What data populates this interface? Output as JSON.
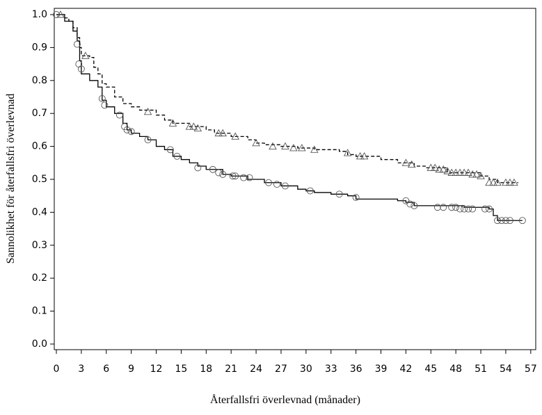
{
  "chart_data": {
    "type": "line",
    "step": true,
    "xlabel": "Återfallsfri överlevnad (månader)",
    "ylabel": "Sannolikhet för återfallsfri överlevnad",
    "xlim": [
      -0.25,
      57.6
    ],
    "ylim": [
      -0.017,
      1.019
    ],
    "xticks": [
      0,
      3,
      6,
      9,
      12,
      15,
      18,
      21,
      24,
      27,
      30,
      33,
      36,
      39,
      42,
      45,
      48,
      51,
      54,
      57
    ],
    "yticks": [
      {
        "value": 0,
        "label": "0.0"
      },
      0.1,
      0.2,
      0.3,
      0.4,
      0.5,
      0.6,
      0.7,
      0.8,
      0.9,
      {
        "value": 1,
        "label": "1.0"
      }
    ],
    "series": [
      {
        "color": "#000000",
        "dash": false,
        "marker": "circle",
        "x": [
          0,
          1,
          2,
          2.5,
          2.8,
          3,
          4,
          5,
          5.5,
          6,
          7,
          8,
          8.5,
          9,
          10,
          11,
          12,
          13,
          14,
          15,
          16,
          17,
          18,
          20,
          21,
          23,
          25,
          27,
          29,
          30,
          31,
          33,
          35,
          36,
          41,
          42,
          43,
          49,
          52,
          52.5,
          53,
          56
        ],
        "values": [
          1.0,
          0.98,
          0.95,
          0.92,
          0.86,
          0.82,
          0.8,
          0.78,
          0.74,
          0.72,
          0.7,
          0.67,
          0.65,
          0.64,
          0.63,
          0.62,
          0.6,
          0.59,
          0.57,
          0.56,
          0.55,
          0.54,
          0.53,
          0.515,
          0.51,
          0.5,
          0.49,
          0.48,
          0.47,
          0.465,
          0.46,
          0.455,
          0.45,
          0.44,
          0.435,
          0.43,
          0.42,
          0.415,
          0.41,
          0.39,
          0.375,
          0.375
        ],
        "censor_x": [
          0,
          2.5,
          2.7,
          3,
          5.5,
          5.8,
          7.6,
          8.2,
          8.5,
          9,
          11,
          13.7,
          14.5,
          17,
          18.8,
          19.5,
          20,
          21.2,
          21.5,
          22.5,
          23.2,
          25.5,
          26.5,
          27.5,
          30.5,
          34,
          36,
          42,
          42.5,
          43,
          45.8,
          46.5,
          47.5,
          48,
          48.5,
          49,
          49.5,
          50,
          51.5,
          52,
          53,
          53.5,
          54,
          54.5,
          56
        ],
        "censor_values": [
          1.0,
          0.91,
          0.85,
          0.835,
          0.745,
          0.725,
          0.695,
          0.66,
          0.65,
          0.645,
          0.62,
          0.59,
          0.57,
          0.535,
          0.53,
          0.52,
          0.515,
          0.51,
          0.51,
          0.505,
          0.505,
          0.49,
          0.485,
          0.48,
          0.465,
          0.455,
          0.445,
          0.435,
          0.425,
          0.42,
          0.415,
          0.415,
          0.415,
          0.415,
          0.41,
          0.41,
          0.41,
          0.41,
          0.41,
          0.41,
          0.375,
          0.375,
          0.375,
          0.375,
          0.375
        ]
      },
      {
        "color": "#000000",
        "dash": true,
        "marker": "triangle",
        "x": [
          0,
          1,
          1.5,
          2,
          2.5,
          2.8,
          3,
          4,
          4.5,
          5,
          5.5,
          6,
          7,
          8,
          9,
          10,
          12,
          13,
          14,
          16,
          18,
          19,
          21,
          23,
          24,
          25,
          27,
          29,
          31,
          34,
          35,
          36,
          39,
          41,
          43,
          44.5,
          47,
          51,
          52,
          53,
          55.5
        ],
        "values": [
          1.0,
          0.99,
          0.98,
          0.96,
          0.93,
          0.9,
          0.875,
          0.87,
          0.84,
          0.82,
          0.79,
          0.78,
          0.75,
          0.73,
          0.72,
          0.71,
          0.695,
          0.68,
          0.67,
          0.66,
          0.65,
          0.64,
          0.63,
          0.62,
          0.61,
          0.605,
          0.6,
          0.595,
          0.59,
          0.585,
          0.575,
          0.57,
          0.56,
          0.55,
          0.54,
          0.535,
          0.52,
          0.51,
          0.5,
          0.49,
          0.49
        ],
        "censor_x": [
          0.5,
          3.5,
          11,
          14,
          16,
          16.5,
          17,
          19.5,
          20,
          21.5,
          24,
          26,
          27.5,
          28.5,
          29.5,
          31,
          35,
          36.5,
          37,
          42,
          42.7,
          45,
          45.5,
          46,
          46.5,
          47,
          47.5,
          48,
          48.5,
          49,
          49.5,
          50,
          50.5,
          51,
          52,
          52.5,
          53,
          54,
          54.5,
          55
        ],
        "censor_values": [
          1.0,
          0.875,
          0.705,
          0.67,
          0.66,
          0.66,
          0.655,
          0.64,
          0.64,
          0.63,
          0.61,
          0.6,
          0.6,
          0.595,
          0.595,
          0.59,
          0.58,
          0.57,
          0.57,
          0.55,
          0.545,
          0.535,
          0.535,
          0.53,
          0.53,
          0.525,
          0.52,
          0.52,
          0.52,
          0.52,
          0.52,
          0.515,
          0.515,
          0.51,
          0.49,
          0.49,
          0.49,
          0.49,
          0.49,
          0.49
        ]
      }
    ]
  }
}
